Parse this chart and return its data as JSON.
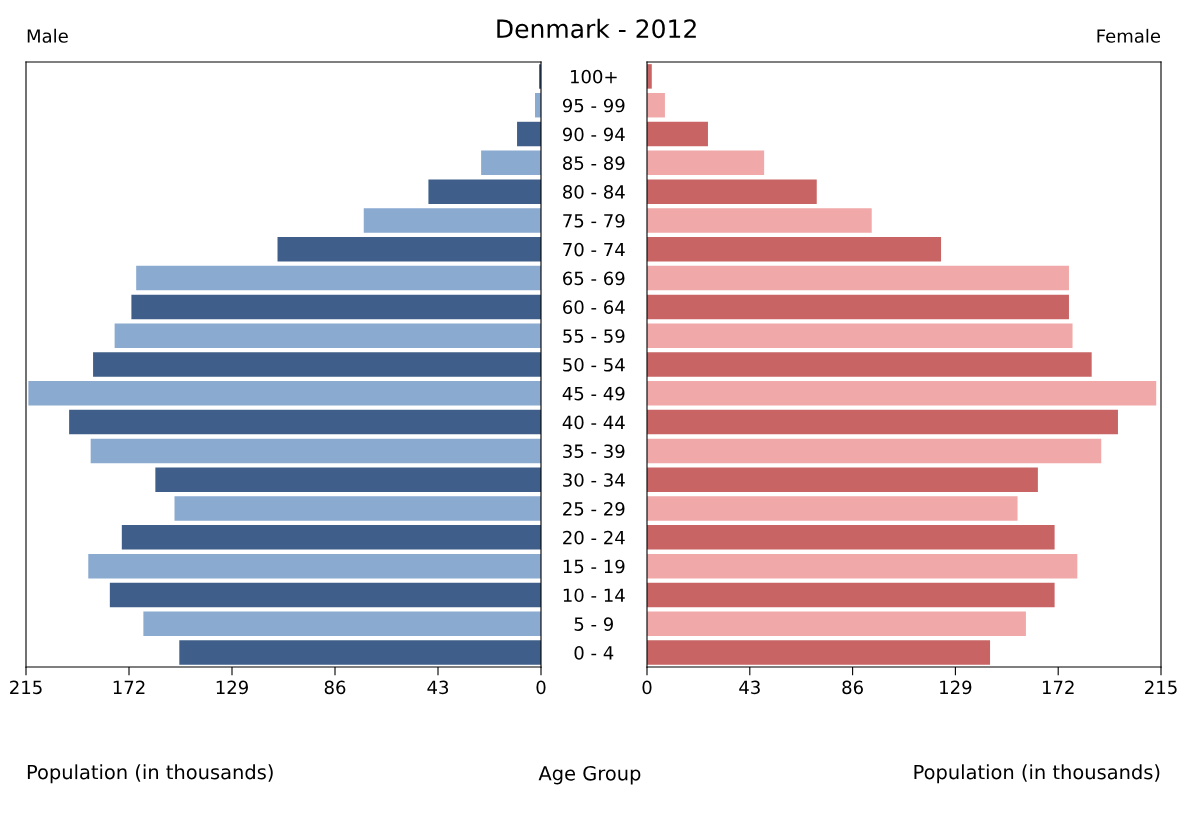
{
  "chart_data": [
    {
      "type": "bar",
      "orientation": "horizontal",
      "title": "Male",
      "xlabel": "Population (in thousands)",
      "ylabel": "Age Group",
      "annotations": [
        "Denmark - 2012"
      ],
      "categories": [
        "100+",
        "95 - 99",
        "90 - 94",
        "85 - 89",
        "80 - 84",
        "75 - 79",
        "70 - 74",
        "65 - 69",
        "60 - 64",
        "55 - 59",
        "50 - 54",
        "45 - 49",
        "40 - 44",
        "35 - 39",
        "30 - 34",
        "25 - 29",
        "20 - 24",
        "15 - 19",
        "10 - 14",
        "5 - 9",
        "0 - 4"
      ],
      "series": [
        {
          "values": [
            0.8,
            2.5,
            10,
            25,
            47,
            74,
            110,
            169,
            171,
            178,
            187,
            214,
            197,
            188,
            161,
            153,
            175,
            189,
            180,
            166,
            151
          ],
          "colors": [
            "#3f5f8a",
            "#8aaad0",
            "#3f5f8a",
            "#8aaad0",
            "#3f5f8a",
            "#8aaad0",
            "#3f5f8a",
            "#8aaad0",
            "#3f5f8a",
            "#8aaad0",
            "#3f5f8a",
            "#8aaad0",
            "#3f5f8a",
            "#8aaad0",
            "#3f5f8a",
            "#8aaad0",
            "#3f5f8a",
            "#8aaad0",
            "#3f5f8a",
            "#8aaad0",
            "#3f5f8a"
          ]
        }
      ],
      "xlim": [
        215,
        0
      ],
      "xticks": [
        215,
        172,
        129,
        86,
        43,
        0
      ]
    },
    {
      "type": "bar",
      "orientation": "horizontal",
      "title": "Female",
      "xlabel": "Population (in thousands)",
      "tick_labels": "x",
      "series": [
        {
          "values": [
            2,
            7.5,
            25.5,
            49,
            71,
            94,
            123,
            176.5,
            176.5,
            178,
            186,
            213,
            197,
            190,
            163.5,
            155,
            170.5,
            180,
            170.5,
            158.5,
            143.5
          ],
          "colors": [
            "#c96464",
            "#f0a8a8",
            "#c96464",
            "#f0a8a8",
            "#c96464",
            "#f0a8a8",
            "#c96464",
            "#f0a8a8",
            "#c96464",
            "#f0a8a8",
            "#c96464",
            "#f0a8a8",
            "#c96464",
            "#f0a8a8",
            "#c96464",
            "#f0a8a8",
            "#c96464",
            "#f0a8a8",
            "#c96464",
            "#f0a8a8",
            "#c96464"
          ]
        }
      ],
      "xlim": [
        0,
        215
      ],
      "xticks": [
        0,
        43,
        86,
        129,
        172,
        215
      ]
    }
  ]
}
